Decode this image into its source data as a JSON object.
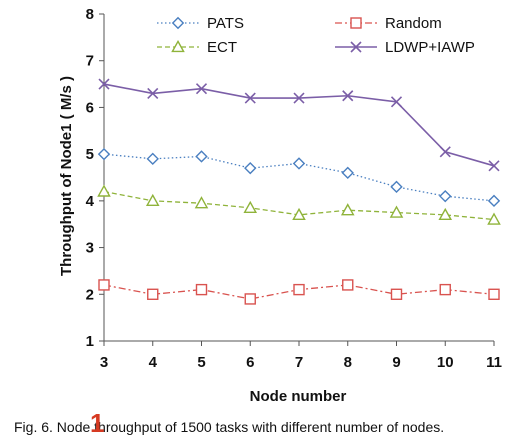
{
  "chart_data": {
    "type": "line",
    "xlabel": "Node number",
    "ylabel": "Throughput of Node1 ( M/s )",
    "x": [
      3,
      4,
      5,
      6,
      7,
      8,
      9,
      10,
      11
    ],
    "xlim": [
      3,
      11
    ],
    "ylim": [
      1,
      8
    ],
    "yticks": [
      1,
      2,
      3,
      4,
      5,
      6,
      7,
      8
    ],
    "grid": false,
    "legend_position": "top",
    "series": [
      {
        "name": "PATS",
        "values": [
          5.0,
          4.9,
          4.95,
          4.7,
          4.8,
          4.6,
          4.3,
          4.1,
          4.0
        ],
        "color": "#4a7fc0",
        "marker": "diamond",
        "line_style": "dotted"
      },
      {
        "name": "Random",
        "values": [
          2.2,
          2.0,
          2.1,
          1.9,
          2.1,
          2.2,
          2.0,
          2.1,
          2.0
        ],
        "color": "#d9534f",
        "marker": "square",
        "line_style": "dash-dot"
      },
      {
        "name": "ECT",
        "values": [
          4.2,
          4.0,
          3.95,
          3.85,
          3.7,
          3.8,
          3.75,
          3.7,
          3.6
        ],
        "color": "#8fb33a",
        "marker": "triangle",
        "line_style": "dashed"
      },
      {
        "name": "LDWP+IAWP",
        "values": [
          6.5,
          6.3,
          6.4,
          6.2,
          6.2,
          6.25,
          6.12,
          5.05,
          4.75
        ],
        "color": "#7b5ea7",
        "marker": "x",
        "line_style": "solid"
      }
    ]
  },
  "caption": "Fig. 6. Node throughput of 1500 tasks with different number of nodes.",
  "annotation": "1"
}
